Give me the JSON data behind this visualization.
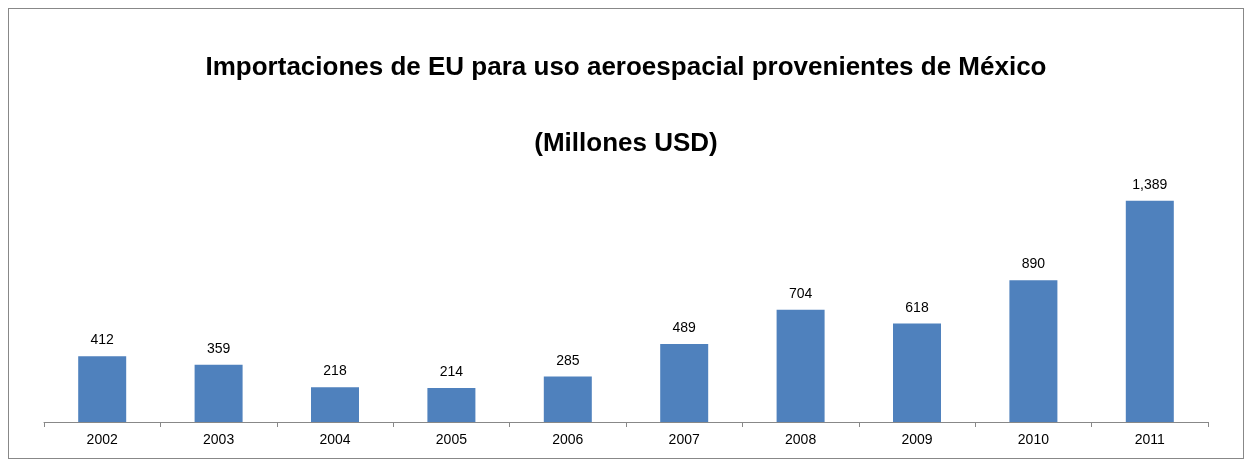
{
  "chart_data": {
    "type": "bar",
    "title": "Importaciones de EU para uso aeroespacial provenientes de México",
    "subtitle": "(Millones USD)",
    "categories": [
      "2002",
      "2003",
      "2004",
      "2005",
      "2006",
      "2007",
      "2008",
      "2009",
      "2010",
      "2011"
    ],
    "values": [
      412,
      359,
      218,
      214,
      285,
      489,
      704,
      618,
      890,
      1389
    ],
    "value_labels": [
      "412",
      "359",
      "218",
      "214",
      "285",
      "489",
      "704",
      "618",
      "890",
      "1,389"
    ],
    "color": "#4f81bd"
  }
}
